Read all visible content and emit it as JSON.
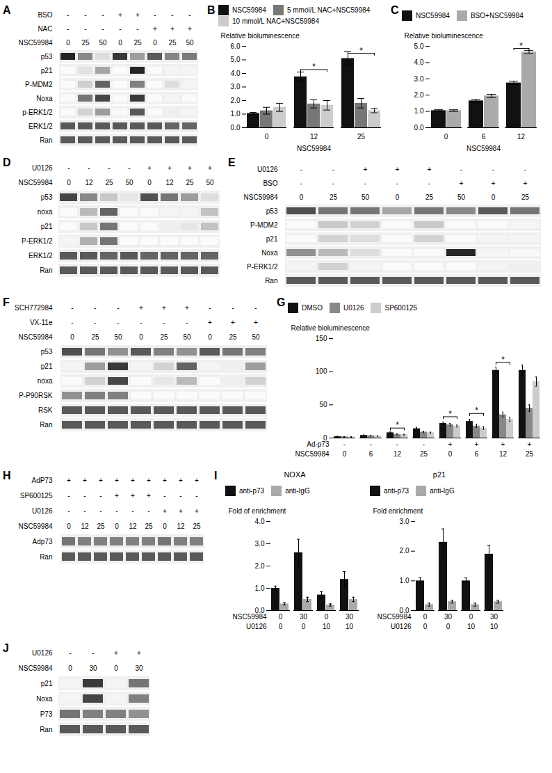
{
  "chart_data": [
    {
      "type": "heatmap",
      "title": "A",
      "category_rows": [
        {
          "name": "BSO",
          "labels": [
            "-",
            "-",
            "-",
            "+",
            "+",
            "-",
            "-",
            "-"
          ]
        },
        {
          "name": "NAC",
          "labels": [
            "-",
            "-",
            "-",
            "-",
            "-",
            "+",
            "+",
            "+"
          ]
        },
        {
          "name": "NSC59984",
          "labels": [
            "0",
            "25",
            "50",
            "0",
            "25",
            "0",
            "25",
            "50"
          ]
        }
      ],
      "categories": [
        "p53",
        "p21",
        "P-MDM2",
        "Noxa",
        "p-ERK1/2",
        "ERK1/2",
        "Ran"
      ],
      "cells": [
        [
          0.88,
          0.55,
          0.22,
          0.82,
          0.48,
          0.72,
          0.56,
          0.6
        ],
        [
          0.03,
          0.2,
          0.45,
          0.03,
          0.88,
          0.03,
          0.08,
          0.08
        ],
        [
          0.03,
          0.3,
          0.68,
          0.03,
          0.58,
          0.03,
          0.22,
          0.08
        ],
        [
          0.03,
          0.62,
          0.78,
          0.03,
          0.82,
          0.03,
          0.08,
          0.03
        ],
        [
          0.03,
          0.28,
          0.48,
          0.03,
          0.72,
          0.03,
          0.12,
          0.08
        ],
        [
          0.72,
          0.72,
          0.72,
          0.72,
          0.72,
          0.72,
          0.68,
          0.68
        ],
        [
          0.72,
          0.72,
          0.72,
          0.72,
          0.72,
          0.72,
          0.72,
          0.72
        ]
      ]
    },
    {
      "type": "bar",
      "title": "B",
      "xlabel": "NSC59984",
      "ylabel": "Relative bioluminescence",
      "categories": [
        "0",
        "12",
        "25"
      ],
      "ylim": [
        0,
        6
      ],
      "yticks": [
        0,
        1,
        2,
        3,
        4,
        5,
        6
      ],
      "legend": "upper left",
      "series": [
        {
          "name": "NSC59984",
          "color": "#111111",
          "values": [
            1.05,
            3.75,
            5.1
          ],
          "errors": [
            0.08,
            0.35,
            0.5
          ]
        },
        {
          "name": "5 mmol/L NAC+NSC59984",
          "color": "#777777",
          "values": [
            1.25,
            1.75,
            1.8
          ],
          "errors": [
            0.25,
            0.3,
            0.35
          ]
        },
        {
          "name": "10 mmol/L NAC+NSC59984",
          "color": "#cccccc",
          "values": [
            1.5,
            1.65,
            1.25
          ],
          "errors": [
            0.3,
            0.35,
            0.15
          ]
        }
      ],
      "annotations": [
        {
          "text": "*",
          "group": 1,
          "from": "NSC59984",
          "to": "10 mmol/L NAC+NSC59984",
          "y": 4.1,
          "height": 0.18
        },
        {
          "text": "*",
          "group": 2,
          "from": "NSC59984",
          "to": "10 mmol/L NAC+NSC59984",
          "y": 5.3,
          "height": 0.18
        }
      ]
    },
    {
      "type": "bar",
      "title": "C",
      "xlabel": "NSC59984",
      "ylabel": "Relative bioluminescence",
      "categories": [
        "0",
        "6",
        "12"
      ],
      "ylim": [
        0,
        5
      ],
      "yticks": [
        0,
        1,
        2,
        3,
        4,
        5
      ],
      "legend": "upper left",
      "series": [
        {
          "name": "NSC59984",
          "color": "#111111",
          "values": [
            1.05,
            1.65,
            2.75
          ],
          "errors": [
            0.05,
            0.08,
            0.1
          ]
        },
        {
          "name": "BSO+NSC59984",
          "color": "#aaaaaa",
          "values": [
            1.05,
            1.95,
            4.65
          ],
          "errors": [
            0.05,
            0.1,
            0.1
          ]
        }
      ],
      "annotations": [
        {
          "text": "*",
          "group": 2,
          "from": "NSC59984",
          "to": "BSO+NSC59984",
          "y": 4.75,
          "height": 0.12
        }
      ]
    },
    {
      "type": "heatmap",
      "title": "D",
      "category_rows": [
        {
          "name": "U0126",
          "labels": [
            "-",
            "-",
            "-",
            "-",
            "+",
            "+",
            "+",
            "+"
          ]
        },
        {
          "name": "NSC59984",
          "labels": [
            "0",
            "12",
            "25",
            "50",
            "0",
            "12",
            "25",
            "50"
          ]
        }
      ],
      "categories": [
        "p53",
        "noxa",
        "p21",
        "P-ERK1/2",
        "ERK1/2",
        "Ran"
      ],
      "cells": [
        [
          0.78,
          0.55,
          0.32,
          0.18,
          0.75,
          0.62,
          0.48,
          0.22
        ],
        [
          0.03,
          0.38,
          0.68,
          0.03,
          0.03,
          0.08,
          0.08,
          0.35
        ],
        [
          0.03,
          0.32,
          0.62,
          0.03,
          0.03,
          0.12,
          0.18,
          0.35
        ],
        [
          0.08,
          0.42,
          0.62,
          0.03,
          0.03,
          0.03,
          0.03,
          0.03
        ],
        [
          0.72,
          0.72,
          0.68,
          0.72,
          0.68,
          0.68,
          0.68,
          0.68
        ],
        [
          0.72,
          0.72,
          0.72,
          0.72,
          0.72,
          0.72,
          0.72,
          0.72
        ]
      ]
    },
    {
      "type": "heatmap",
      "title": "E",
      "category_rows": [
        {
          "name": "U0126",
          "labels": [
            "-",
            "-",
            "+",
            "+",
            "+",
            "-",
            "-",
            "-"
          ]
        },
        {
          "name": "BSO",
          "labels": [
            "-",
            "-",
            "-",
            "-",
            "-",
            "+",
            "+",
            "+"
          ]
        },
        {
          "name": "NSC59984",
          "labels": [
            "0",
            "25",
            "50",
            "0",
            "25",
            "50",
            "0",
            "25"
          ]
        }
      ],
      "categories": [
        "p53",
        "P-MDM2",
        "p21",
        "Noxa",
        "P-ERK1/2",
        "Ran"
      ],
      "cells": [
        [
          0.75,
          0.62,
          0.62,
          0.45,
          0.62,
          0.55,
          0.72,
          0.62
        ],
        [
          0.03,
          0.32,
          0.28,
          0.03,
          0.32,
          0.03,
          0.03,
          0.08
        ],
        [
          0.03,
          0.28,
          0.22,
          0.03,
          0.28,
          0.03,
          0.08,
          0.08
        ],
        [
          0.52,
          0.38,
          0.22,
          0.03,
          0.03,
          0.88,
          0.08,
          0.05
        ],
        [
          0.08,
          0.28,
          0.08,
          0.03,
          0.03,
          0.03,
          0.08,
          0.12
        ],
        [
          0.72,
          0.72,
          0.72,
          0.72,
          0.72,
          0.72,
          0.72,
          0.72
        ]
      ]
    },
    {
      "type": "heatmap",
      "title": "F",
      "category_rows": [
        {
          "name": "SCH772984",
          "labels": [
            "-",
            "-",
            "-",
            "+",
            "+",
            "+",
            "-",
            "-",
            "-"
          ]
        },
        {
          "name": "VX-11e",
          "labels": [
            "-",
            "-",
            "-",
            "-",
            "-",
            "-",
            "+",
            "+",
            "+"
          ]
        },
        {
          "name": "NSC59984",
          "labels": [
            "0",
            "25",
            "50",
            "0",
            "25",
            "50",
            "0",
            "25",
            "50"
          ]
        }
      ],
      "categories": [
        "p53",
        "p21",
        "noxa",
        "P-P90RSK",
        "RSK",
        "Ran"
      ],
      "cells": [
        [
          0.75,
          0.62,
          0.52,
          0.72,
          0.58,
          0.52,
          0.72,
          0.62,
          0.58
        ],
        [
          0.08,
          0.48,
          0.82,
          0.08,
          0.28,
          0.68,
          0.08,
          0.12,
          0.48
        ],
        [
          0.03,
          0.28,
          0.78,
          0.03,
          0.18,
          0.38,
          0.03,
          0.12,
          0.28
        ],
        [
          0.52,
          0.58,
          0.58,
          0.03,
          0.03,
          0.03,
          0.03,
          0.03,
          0.03
        ],
        [
          0.72,
          0.72,
          0.72,
          0.72,
          0.72,
          0.72,
          0.72,
          0.72,
          0.72
        ],
        [
          0.72,
          0.72,
          0.72,
          0.72,
          0.72,
          0.72,
          0.72,
          0.72,
          0.72
        ]
      ]
    },
    {
      "type": "bar",
      "title": "G",
      "ylabel": "Relative bioluminescence",
      "category_rows": [
        {
          "name": "Ad-p73",
          "labels": [
            "-",
            "-",
            "-",
            "-",
            "+",
            "+",
            "+",
            "+"
          ]
        },
        {
          "name": "NSC59984",
          "labels": [
            "0",
            "6",
            "12",
            "25",
            "0",
            "6",
            "12",
            "25"
          ]
        }
      ],
      "ylim": [
        0,
        150
      ],
      "yticks": [
        0,
        50,
        100,
        150
      ],
      "legend": "upper left",
      "series": [
        {
          "name": "DMSO",
          "color": "#111111",
          "values": [
            2.0,
            4.0,
            8.0,
            14.0,
            22.0,
            25.0,
            102.0,
            102.0
          ],
          "errors": [
            0.5,
            0.6,
            1.0,
            1.5,
            2.0,
            3.0,
            5.0,
            8.0
          ]
        },
        {
          "name": "U0126",
          "color": "#888888",
          "values": [
            1.8,
            3.5,
            5.5,
            9.0,
            20.0,
            18.0,
            35.0,
            45.0
          ],
          "errors": [
            0.4,
            0.5,
            0.8,
            1.0,
            2.0,
            2.5,
            4.0,
            5.0
          ]
        },
        {
          "name": "SP600125",
          "color": "#cccccc",
          "values": [
            1.5,
            3.0,
            5.0,
            8.0,
            18.0,
            15.0,
            28.0,
            85.0
          ],
          "errors": [
            0.3,
            0.4,
            0.6,
            0.8,
            1.5,
            2.0,
            3.5,
            7.0
          ]
        }
      ],
      "annotations": [
        {
          "text": "*",
          "group": 2,
          "from": "DMSO",
          "to": "SP600125",
          "y": 11,
          "height": 4
        },
        {
          "text": "*",
          "group": 4,
          "from": "DMSO",
          "to": "SP600125",
          "y": 28,
          "height": 4
        },
        {
          "text": "*",
          "group": 5,
          "from": "DMSO",
          "to": "SP600125",
          "y": 33,
          "height": 4
        },
        {
          "text": "*",
          "group": 6,
          "from": "DMSO",
          "to": "SP600125",
          "y": 110,
          "height": 4
        }
      ]
    },
    {
      "type": "heatmap",
      "title": "H",
      "category_rows": [
        {
          "name": "AdP73",
          "labels": [
            "+",
            "+",
            "+",
            "+",
            "+",
            "+",
            "+",
            "+",
            "+"
          ]
        },
        {
          "name": "SP600125",
          "labels": [
            "-",
            "-",
            "-",
            "+",
            "+",
            "+",
            "-",
            "-",
            "-"
          ]
        },
        {
          "name": "U0126",
          "labels": [
            "-",
            "-",
            "-",
            "-",
            "-",
            "-",
            "+",
            "+",
            "+"
          ]
        },
        {
          "name": "NSC59984",
          "labels": [
            "0",
            "12",
            "25",
            "0",
            "12",
            "25",
            "0",
            "12",
            "25"
          ]
        }
      ],
      "categories": [
        "Adp73",
        "Ran"
      ],
      "cells": [
        [
          0.62,
          0.58,
          0.58,
          0.58,
          0.58,
          0.58,
          0.62,
          0.58,
          0.58
        ],
        [
          0.72,
          0.72,
          0.72,
          0.72,
          0.72,
          0.72,
          0.72,
          0.72,
          0.72
        ]
      ]
    },
    {
      "type": "bar",
      "title": "I",
      "subtitle": "NOXA",
      "ylabel": "Fold of enrichment",
      "category_rows": [
        {
          "name": "NSC59984",
          "labels": [
            "0",
            "30",
            "0",
            "30"
          ]
        },
        {
          "name": "U0126",
          "labels": [
            "0",
            "0",
            "10",
            "10"
          ]
        }
      ],
      "ylim": [
        0,
        4
      ],
      "yticks": [
        0,
        1,
        2,
        3,
        4
      ],
      "legend": "upper left",
      "series": [
        {
          "name": "anti-p73",
          "color": "#111111",
          "values": [
            1.0,
            2.6,
            0.7,
            1.4
          ],
          "errors": [
            0.1,
            0.6,
            0.15,
            0.35
          ]
        },
        {
          "name": "anti-IgG",
          "color": "#aaaaaa",
          "values": [
            0.3,
            0.5,
            0.25,
            0.5
          ],
          "errors": [
            0.05,
            0.1,
            0.05,
            0.1
          ]
        }
      ]
    },
    {
      "type": "bar",
      "subtitle": "p21",
      "ylabel": "Fold enrichment",
      "category_rows": [
        {
          "name": "NSC59984",
          "labels": [
            "0",
            "30",
            "0",
            "30"
          ]
        },
        {
          "name": "U0126",
          "labels": [
            "0",
            "0",
            "10",
            "10"
          ]
        }
      ],
      "ylim": [
        0,
        3
      ],
      "yticks": [
        0,
        1,
        2,
        3
      ],
      "legend": "upper left",
      "series": [
        {
          "name": "anti-p73",
          "color": "#111111",
          "values": [
            1.0,
            2.3,
            1.0,
            1.9
          ],
          "errors": [
            0.1,
            0.45,
            0.1,
            0.3
          ]
        },
        {
          "name": "anti-IgG",
          "color": "#aaaaaa",
          "values": [
            0.2,
            0.3,
            0.2,
            0.3
          ],
          "errors": [
            0.05,
            0.05,
            0.05,
            0.05
          ]
        }
      ]
    },
    {
      "type": "heatmap",
      "title": "J",
      "category_rows": [
        {
          "name": "U0126",
          "labels": [
            "-",
            "-",
            "+",
            "+"
          ]
        },
        {
          "name": "NSC59984",
          "labels": [
            "0",
            "30",
            "0",
            "30"
          ]
        }
      ],
      "categories": [
        "p21",
        "Noxa",
        "P73",
        "Ran"
      ],
      "cells": [
        [
          0.08,
          0.82,
          0.08,
          0.62
        ],
        [
          0.08,
          0.78,
          0.08,
          0.58
        ],
        [
          0.62,
          0.58,
          0.58,
          0.52
        ],
        [
          0.72,
          0.72,
          0.72,
          0.72
        ]
      ]
    }
  ]
}
